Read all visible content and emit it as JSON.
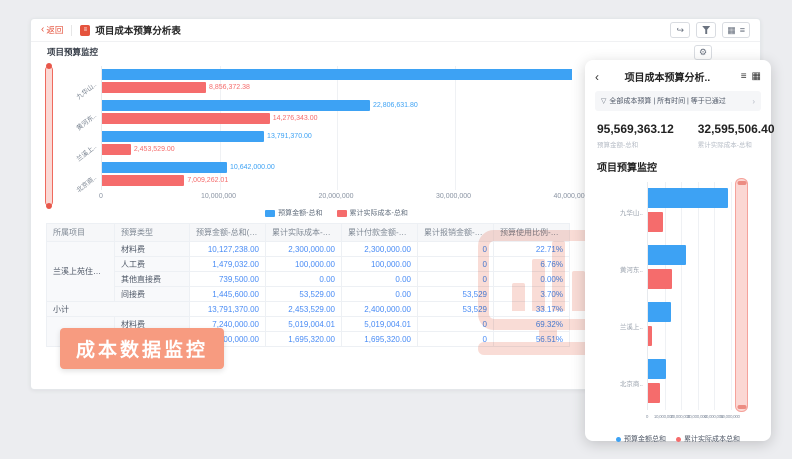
{
  "colors": {
    "blue": "#3da2f4",
    "red": "#f56c6c",
    "salmon_overlay": "#f79b80",
    "link_blue": "#4a8cf5",
    "accent_red": "#e5533d",
    "watermark_pink": "#f5c0b4"
  },
  "icons": {
    "back_chevron": "‹",
    "share": "↪",
    "grid": "▦",
    "list": "≡",
    "gear": "⚙",
    "panel_back": "‹",
    "panel_list": "≡",
    "panel_grid": "▦",
    "filter_funnel": "▽",
    "chevron_right": "›"
  },
  "toolbar": {
    "back_label": "返回",
    "title": "项目成本预算分析表"
  },
  "main": {
    "section_title": "项目预算监控",
    "overlay_label": "成本数据监控"
  },
  "chart_data": [
    {
      "id": "main-chart",
      "type": "bar",
      "orientation": "horizontal",
      "title": "项目预算监控",
      "categories": [
        "九华山..",
        "黄河东..",
        "兰溪上..",
        "北京商.."
      ],
      "series": [
        {
          "name": "预算金额-总和",
          "color": "#3da2f4",
          "values": [
            48329361.32,
            22806631.8,
            13791370.0,
            10642000.0
          ],
          "labels": [
            "",
            "22,806,631.80",
            "13,791,370.00",
            "10,642,000.00"
          ]
        },
        {
          "name": "累计实际成本-总和",
          "color": "#f56c6c",
          "values": [
            8856372.38,
            14276343.0,
            2453529.0,
            7009262.01
          ],
          "labels": [
            "8,856,372.38",
            "14,276,343.00",
            "2,453,529.00",
            "7,009,262.01"
          ]
        }
      ],
      "xlim": [
        0,
        40000000
      ],
      "ticks": [
        "0",
        "10,000,000",
        "20,000,000",
        "30,000,000",
        "40,000,000"
      ],
      "grid": true,
      "legend_position": "bottom",
      "note": "first budget bar exceeds axis max and is clipped at plot edge"
    },
    {
      "id": "panel-chart",
      "type": "bar",
      "orientation": "horizontal",
      "title": "项目预算监控",
      "categories": [
        "九华山..",
        "黄河东..",
        "兰溪上..",
        "北京商.."
      ],
      "series": [
        {
          "name": "预算金额总和",
          "color": "#3da2f4",
          "values": [
            48329361.32,
            22806631.8,
            13791370.0,
            10642000.0
          ],
          "labels": [
            "",
            "",
            "",
            ""
          ]
        },
        {
          "name": "累计实际成本总和",
          "color": "#f56c6c",
          "values": [
            8856372.38,
            14276343.0,
            2453529.0,
            7009262.01
          ],
          "labels": [
            "",
            "",
            "",
            ""
          ]
        }
      ],
      "xlim": [
        0,
        50000000
      ],
      "ticks": [
        "0",
        "10,000,000",
        "20,000,000",
        "30,000,000",
        "40,000,000",
        "50,000,000"
      ],
      "grid": true,
      "legend_position": "bottom"
    }
  ],
  "table": {
    "headers": [
      "所属项目",
      "预算类型",
      "预算金额-总和(元)",
      "累计实际成本-总和(元)",
      "累计付款金额-总和(元)",
      "累计报销金额-总和(元)",
      "预算使用比例-总和(%)"
    ],
    "groups": [
      {
        "project": "兰溪上苑住宅小区精装修第...",
        "subtotal": false,
        "rows": [
          [
            "材料费",
            "10,127,238.00",
            "2,300,000.00",
            "2,300,000.00",
            "0",
            "22.71%"
          ],
          [
            "人工费",
            "1,479,032.00",
            "100,000.00",
            "100,000.00",
            "0",
            "6.76%"
          ],
          [
            "其他直接费",
            "739,500.00",
            "0.00",
            "0.00",
            "0",
            "0.00%"
          ],
          [
            "间接费",
            "1,445,600.00",
            "53,529.00",
            "0.00",
            "53,529",
            "3.70%"
          ]
        ]
      },
      {
        "project": "小计",
        "subtotal": true,
        "rows": [
          [
            "",
            "13,791,370.00",
            "2,453,529.00",
            "2,400,000.00",
            "53,529",
            "33.17%"
          ]
        ]
      },
      {
        "project": "",
        "subtotal": false,
        "rows": [
          [
            "材料费",
            "7,240,000.00",
            "5,019,004.01",
            "5,019,004.01",
            "0",
            "69.32%"
          ],
          [
            "",
            "3,000,000.00",
            "1,695,320.00",
            "1,695,320.00",
            "0",
            "56.51%"
          ]
        ]
      }
    ]
  },
  "panel": {
    "title": "项目成本预算分析..",
    "filter_text": "全部成本预算 | 所有时间 | 等于已通过",
    "kpis": [
      {
        "value": "95,569,363.12",
        "label": "预算金额-总和"
      },
      {
        "value": "32,595,506.40",
        "label": "累计实际成本-总和"
      }
    ],
    "section_title": "项目预算监控"
  }
}
